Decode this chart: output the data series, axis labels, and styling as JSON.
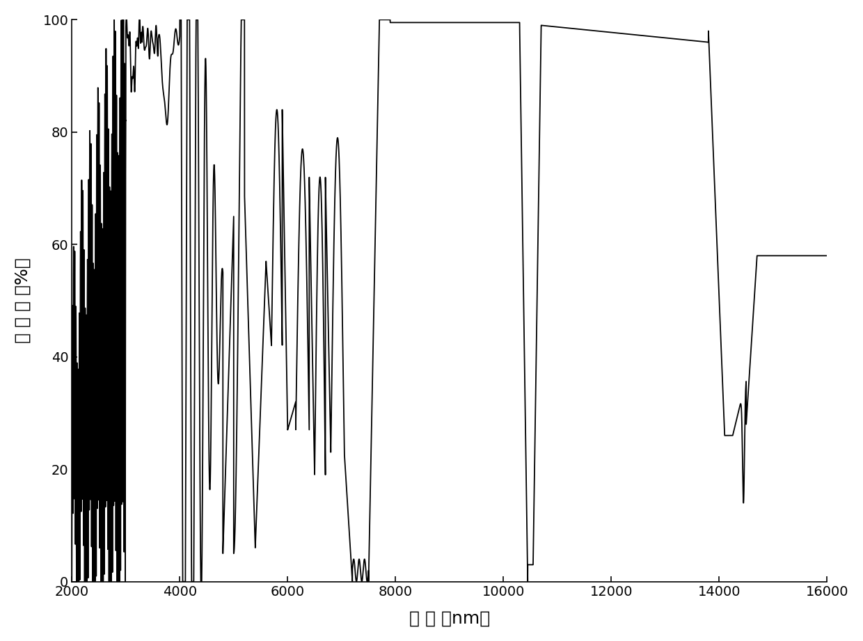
{
  "xlabel": "波 长 （nm）",
  "ylabel": "反 射 率 （%）",
  "xlim": [
    2000,
    16000
  ],
  "ylim": [
    0,
    100
  ],
  "xticks": [
    2000,
    4000,
    6000,
    8000,
    10000,
    12000,
    14000,
    16000
  ],
  "yticks": [
    0,
    20,
    40,
    60,
    80,
    100
  ],
  "line_color": "#000000",
  "line_width": 1.3,
  "background_color": "#ffffff",
  "axis_fontsize": 18,
  "tick_fontsize": 14
}
